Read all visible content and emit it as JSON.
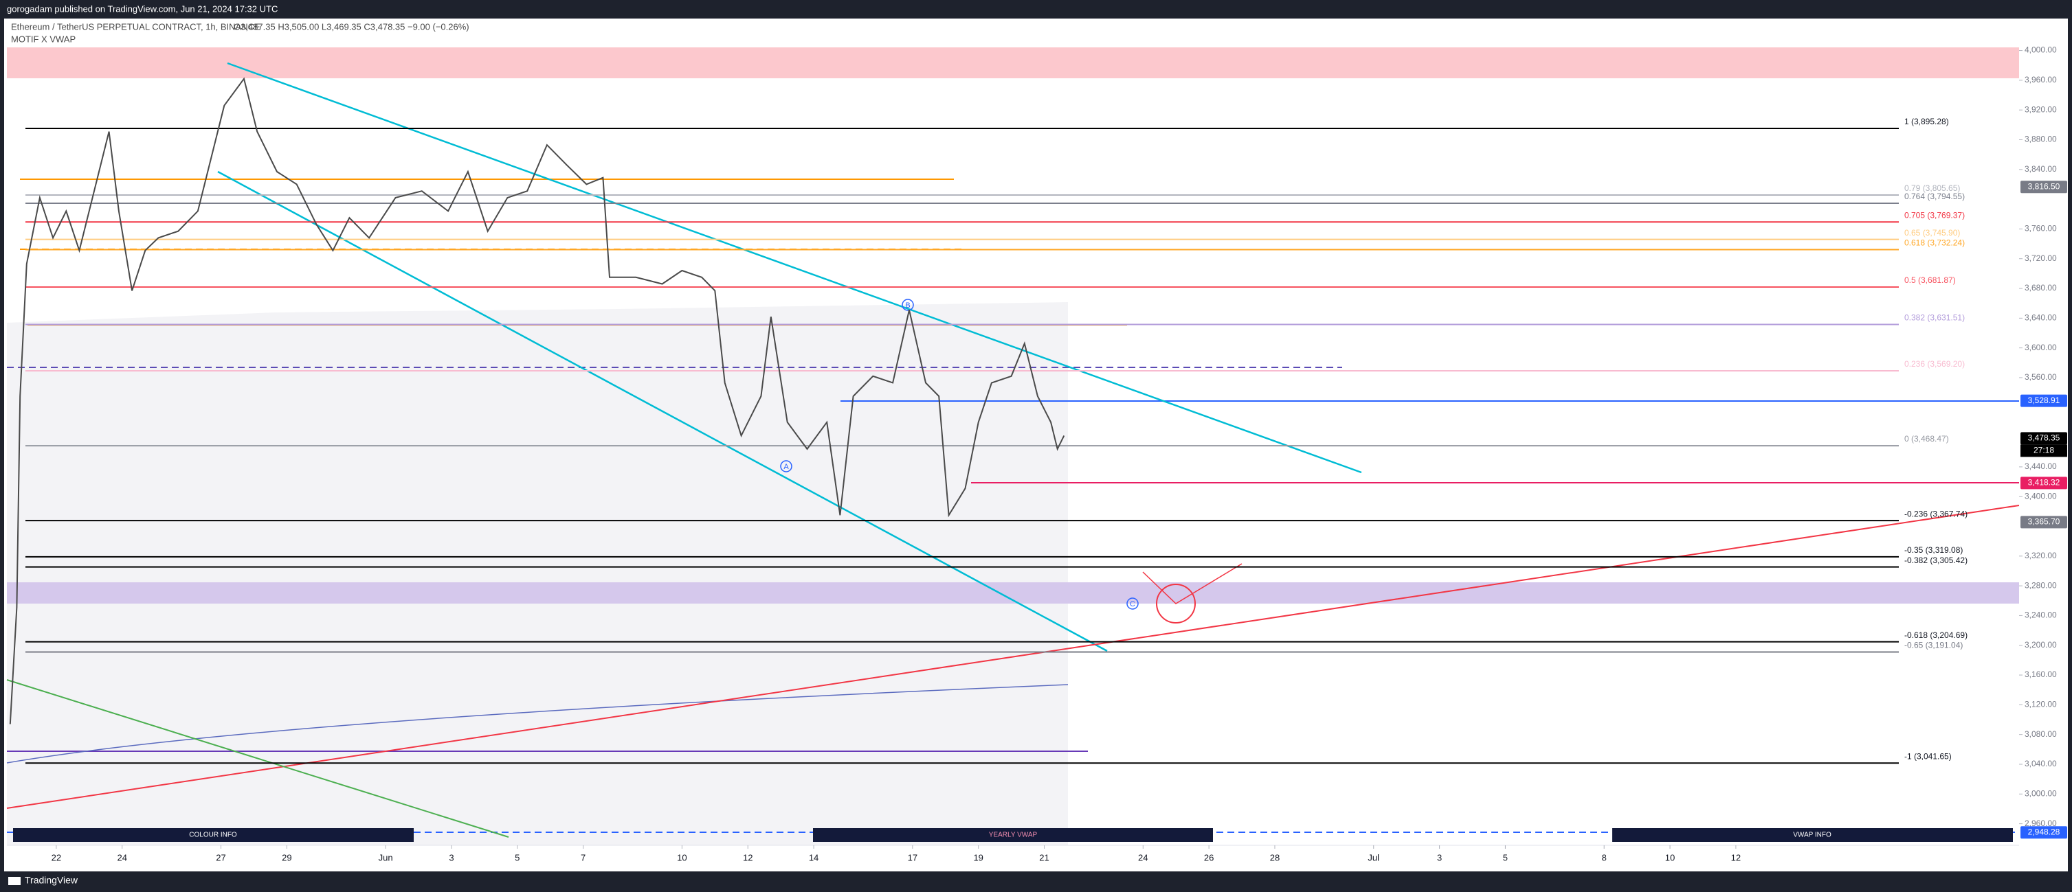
{
  "header": {
    "publisher": "gorogadam published on TradingView.com, Jun 21, 2024 17:32 UTC",
    "footer": "TradingView"
  },
  "chart_data": {
    "type": "line",
    "title": "Ethereum / TetherUS PERPETUAL CONTRACT, 1h, BINANCE",
    "ohlc": "O3,487.35 H3,505.00 L3,469.35 C3,478.35 −9.00 (−0.26%)",
    "subtitle": "MOTIF X VWAP",
    "color": "#4a4a4a",
    "x": [
      -1.4,
      -1.2,
      -1.1,
      -0.9,
      -0.5,
      -0.1,
      0.3,
      0.7,
      1.1,
      1.6,
      1.9,
      2.3,
      2.7,
      3.1,
      3.7,
      4.3,
      4.7,
      5.1,
      5.7,
      6.1,
      6.7,
      7.3,
      7.9,
      8.4,
      8.9,
      9.5,
      10.3,
      11.1,
      11.9,
      12.5,
      13.1,
      13.7,
      14.3,
      14.9,
      15.5,
      16.1,
      16.6,
      16.8,
      17.6,
      18.4,
      19.0,
      19.6,
      20.0,
      20.3,
      20.8,
      21.4,
      21.7,
      22.2,
      22.8,
      23.4,
      23.8,
      24.2,
      24.8,
      25.4,
      25.9,
      26.4,
      26.8,
      27.1,
      27.6,
      28.0,
      28.4,
      29.0,
      29.4,
      29.8,
      30.2,
      30.4,
      30.6
    ],
    "values": [
      3094,
      3251,
      3535,
      3713,
      3802,
      3748,
      3784,
      3731,
      3802,
      3891,
      3784,
      3677,
      3731,
      3748,
      3757,
      3784,
      3855,
      3926,
      3962,
      3891,
      3837,
      3820,
      3766,
      3731,
      3775,
      3748,
      3802,
      3811,
      3784,
      3837,
      3757,
      3802,
      3811,
      3873,
      3846,
      3820,
      3829,
      3695,
      3695,
      3686,
      3704,
      3695,
      3677,
      3553,
      3482,
      3535,
      3642,
      3500,
      3464,
      3500,
      3375,
      3535,
      3562,
      3553,
      3651,
      3553,
      3535,
      3375,
      3411,
      3500,
      3553,
      3562,
      3606,
      3535,
      3500,
      3464,
      3482
    ],
    "xlim": [
      -1.5,
      59.6
    ],
    "xticks": [
      {
        "value": 0,
        "label": "22"
      },
      {
        "value": 2,
        "label": "24"
      },
      {
        "value": 5,
        "label": "27"
      },
      {
        "value": 7,
        "label": "29"
      },
      {
        "value": 10,
        "label": "Jun"
      },
      {
        "value": 12,
        "label": "3"
      },
      {
        "value": 14,
        "label": "5"
      },
      {
        "value": 16,
        "label": "7"
      },
      {
        "value": 19,
        "label": "10"
      },
      {
        "value": 21,
        "label": "12"
      },
      {
        "value": 23,
        "label": "14"
      },
      {
        "value": 26,
        "label": "17"
      },
      {
        "value": 28,
        "label": "19"
      },
      {
        "value": 30,
        "label": "21"
      },
      {
        "value": 33,
        "label": "24"
      },
      {
        "value": 35,
        "label": "26"
      },
      {
        "value": 37,
        "label": "28"
      },
      {
        "value": 40,
        "label": "Jul"
      },
      {
        "value": 42,
        "label": "3"
      },
      {
        "value": 44,
        "label": "5"
      },
      {
        "value": 47,
        "label": "8"
      },
      {
        "value": 49,
        "label": "10"
      },
      {
        "value": 51,
        "label": "12"
      }
    ],
    "ylim": [
      2931,
      4043
    ],
    "yticks": [
      {
        "value": 4000,
        "label": "4,000.00"
      },
      {
        "value": 3960,
        "label": "3,960.00"
      },
      {
        "value": 3920,
        "label": "3,920.00"
      },
      {
        "value": 3880,
        "label": "3,880.00"
      },
      {
        "value": 3840,
        "label": "3,840.00"
      },
      {
        "value": 3760,
        "label": "3,760.00"
      },
      {
        "value": 3720,
        "label": "3,720.00"
      },
      {
        "value": 3680,
        "label": "3,680.00"
      },
      {
        "value": 3640,
        "label": "3,640.00"
      },
      {
        "value": 3600,
        "label": "3,600.00"
      },
      {
        "value": 3560,
        "label": "3,560.00"
      },
      {
        "value": 3440,
        "label": "3,440.00"
      },
      {
        "value": 3400,
        "label": "3,400.00"
      },
      {
        "value": 3320,
        "label": "3,320.00"
      },
      {
        "value": 3280,
        "label": "3,280.00"
      },
      {
        "value": 3240,
        "label": "3,240.00"
      },
      {
        "value": 3200,
        "label": "3,200.00"
      },
      {
        "value": 3160,
        "label": "3,160.00"
      },
      {
        "value": 3120,
        "label": "3,120.00"
      },
      {
        "value": 3080,
        "label": "3,080.00"
      },
      {
        "value": 3040,
        "label": "3,040.00"
      },
      {
        "value": 3000,
        "label": "3,000.00"
      },
      {
        "value": 2960,
        "label": "2,960.00"
      }
    ],
    "levels": [
      {
        "value": 3895.28,
        "label": "1 (3,895.28)",
        "color": "#000000"
      },
      {
        "value": 3805.65,
        "label": "0.79 (3,805.65)",
        "color": "#b2b5be"
      },
      {
        "value": 3794.55,
        "label": "0.764 (3,794.55)",
        "color": "#7b7f8c"
      },
      {
        "value": 3769.37,
        "label": "0.705 (3,769.37)",
        "color": "#f23645"
      },
      {
        "value": 3745.9,
        "label": "0.65 (3,745.90)",
        "color": "#ffcc80"
      },
      {
        "value": 3732.24,
        "label": "0.618 (3,732.24)",
        "color": "#ffa726"
      },
      {
        "value": 3681.87,
        "label": "0.5 (3,681.87)",
        "color": "#f7525f"
      },
      {
        "value": 3631.51,
        "label": "0.382 (3,631.51)",
        "color": "#b39ddb"
      },
      {
        "value": 3569.2,
        "label": "0.236 (3,569.20)",
        "color": "#f8bbd0"
      },
      {
        "value": 3468.47,
        "label": "0 (3,468.47)",
        "color": "#9598a1"
      },
      {
        "value": 3367.74,
        "label": "-0.236 (3,367.74)",
        "color": "#000000"
      },
      {
        "value": 3319.08,
        "label": "-0.35 (3,319.08)",
        "color": "#000000"
      },
      {
        "value": 3305.42,
        "label": "-0.382 (3,305.42)",
        "color": "#000000"
      },
      {
        "value": 3204.69,
        "label": "-0.618 (3,204.69)",
        "color": "#000000"
      },
      {
        "value": 3191.04,
        "label": "-0.65 (3,191.04)",
        "color": "#787b86"
      },
      {
        "value": 3041.65,
        "label": "-1 (3,041.65)",
        "color": "#000000"
      }
    ],
    "price_labels": [
      {
        "value": 3816.5,
        "label": "3,816.50",
        "color": "#787b86"
      },
      {
        "value": 3528.91,
        "label": "3,528.91",
        "color": "#2962ff"
      },
      {
        "value": 3478.35,
        "label": "3,478.35",
        "color": "#000000"
      },
      {
        "value": 3418.32,
        "label": "3,418.32",
        "color": "#e91e63"
      },
      {
        "value": 3365.7,
        "label": "3,365.70",
        "color": "#787b86"
      },
      {
        "value": 2948.28,
        "label": "2,948.28",
        "color": "#2962ff"
      }
    ],
    "countdown": "27:18",
    "wave_labels": [
      "A",
      "B",
      "C"
    ],
    "boxes": [
      "COLOUR INFO",
      "YEARLY VWAP",
      "VWAP INFO"
    ]
  }
}
